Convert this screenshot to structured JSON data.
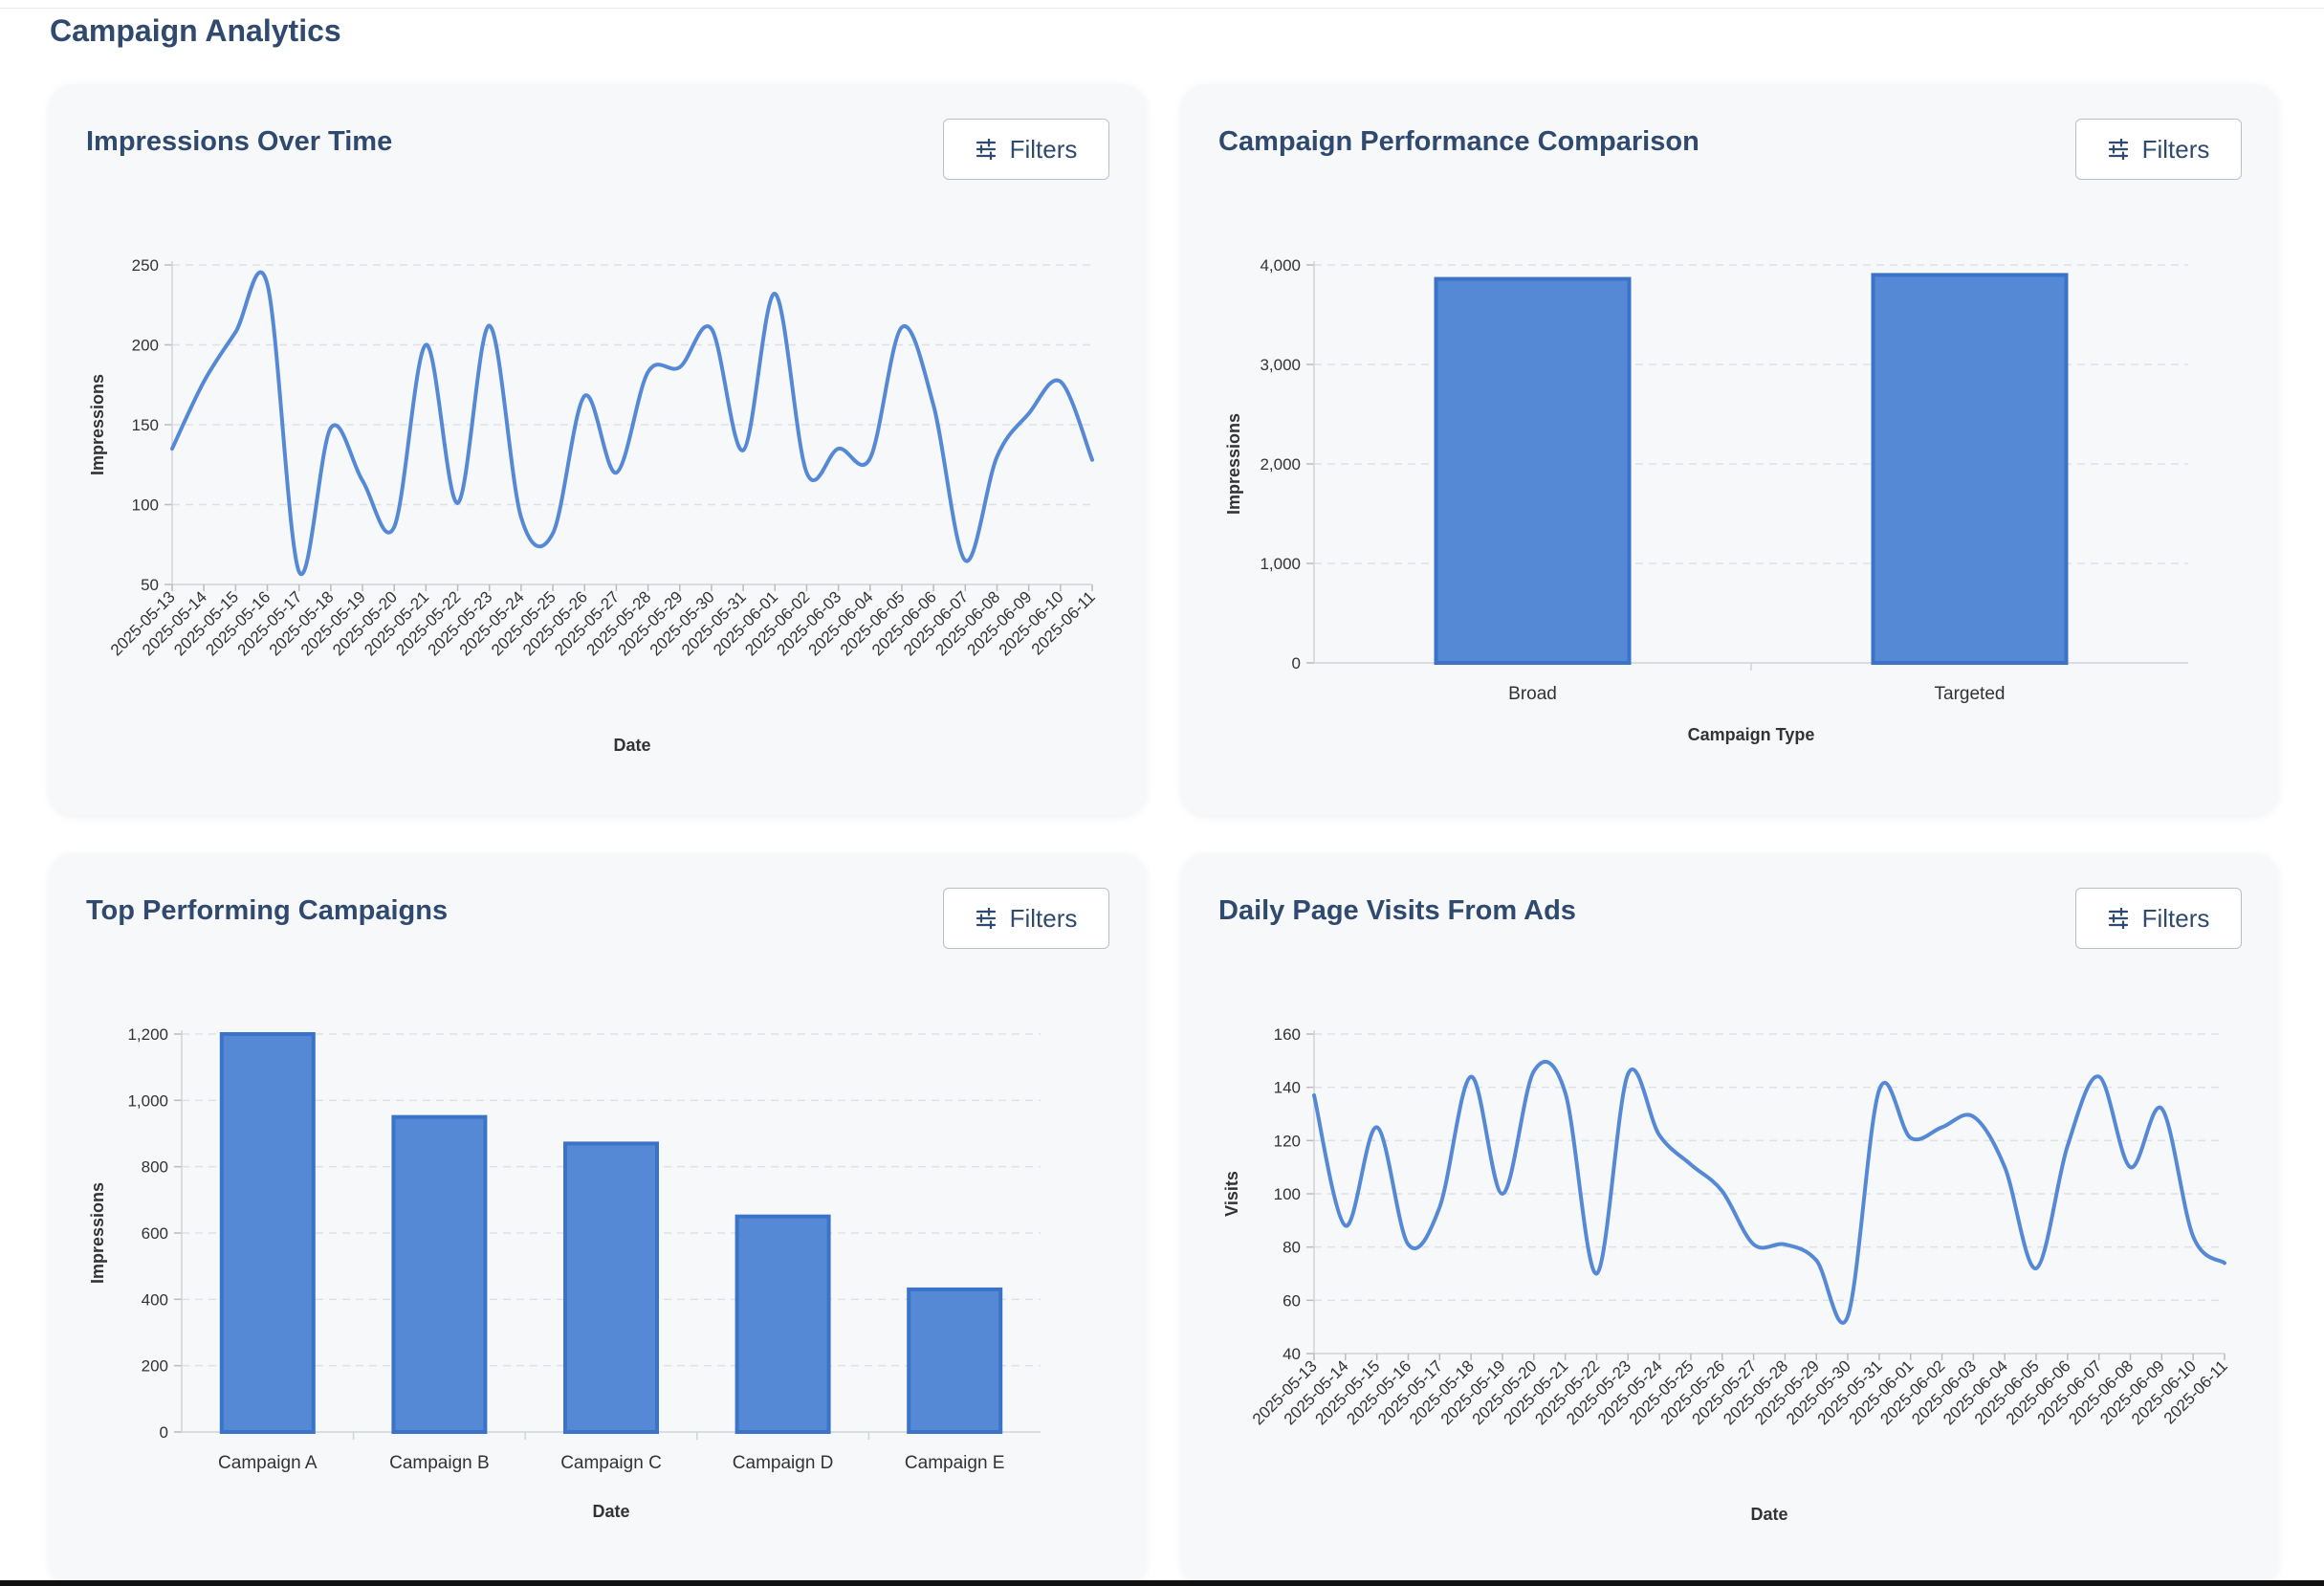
{
  "page": {
    "title": "Campaign Analytics"
  },
  "icons": {
    "filter": "sliders-icon"
  },
  "colors": {
    "bar_fill": "#5589d6",
    "bar_stroke": "#3b73c9",
    "line": "#5589d6",
    "title": "#2f4a6e",
    "grid": "#dde1e7",
    "card_bg": "#f7f8fa"
  },
  "cards": [
    {
      "title": "Impressions Over Time",
      "filter_label": "Filters"
    },
    {
      "title": "Campaign Performance Comparison",
      "filter_label": "Filters"
    },
    {
      "title": "Top Performing Campaigns",
      "filter_label": "Filters"
    },
    {
      "title": "Daily Page Visits From Ads",
      "filter_label": "Filters"
    }
  ],
  "chart_data": [
    {
      "type": "line",
      "title": "Impressions Over Time",
      "xlabel": "Date",
      "ylabel": "Impressions",
      "ylim": [
        50,
        250
      ],
      "yticks": [
        50,
        100,
        150,
        200,
        250
      ],
      "grid": true,
      "x": [
        "2025-05-13",
        "2025-05-14",
        "2025-05-15",
        "2025-05-16",
        "2025-05-17",
        "2025-05-18",
        "2025-05-19",
        "2025-05-20",
        "2025-05-21",
        "2025-05-22",
        "2025-05-23",
        "2025-05-24",
        "2025-05-25",
        "2025-05-26",
        "2025-05-27",
        "2025-05-28",
        "2025-05-29",
        "2025-05-30",
        "2025-05-31",
        "2025-06-01",
        "2025-06-02",
        "2025-06-03",
        "2025-06-04",
        "2025-06-05",
        "2025-06-06",
        "2025-06-07",
        "2025-06-08",
        "2025-06-09",
        "2025-06-10",
        "2025-06-11"
      ],
      "series": [
        {
          "values": [
            135,
            177,
            208,
            238,
            58,
            148,
            115,
            86,
            200,
            101,
            212,
            92,
            82,
            168,
            120,
            183,
            186,
            210,
            134,
            232,
            120,
            135,
            129,
            211,
            162,
            65,
            130,
            157,
            177,
            128
          ]
        }
      ]
    },
    {
      "type": "bar",
      "title": "Campaign Performance Comparison",
      "xlabel": "Campaign Type",
      "ylabel": "Impressions",
      "ylim": [
        0,
        4000
      ],
      "yticks": [
        0,
        1000,
        2000,
        3000,
        4000
      ],
      "ytick_labels": [
        "0",
        "1,000",
        "2,000",
        "3,000",
        "4,000"
      ],
      "grid": true,
      "categories": [
        "Broad",
        "Targeted"
      ],
      "values": [
        3860,
        3900
      ]
    },
    {
      "type": "bar",
      "title": "Top Performing Campaigns",
      "xlabel": "Date",
      "ylabel": "Impressions",
      "ylim": [
        0,
        1200
      ],
      "yticks": [
        0,
        200,
        400,
        600,
        800,
        1000,
        1200
      ],
      "ytick_labels": [
        "0",
        "200",
        "400",
        "600",
        "800",
        "1,000",
        "1,200"
      ],
      "grid": true,
      "categories": [
        "Campaign A",
        "Campaign B",
        "Campaign C",
        "Campaign D",
        "Campaign E"
      ],
      "values": [
        1200,
        950,
        870,
        650,
        430
      ]
    },
    {
      "type": "line",
      "title": "Daily Page Visits From Ads",
      "xlabel": "Date",
      "ylabel": "Visits",
      "ylim": [
        40,
        160
      ],
      "yticks": [
        40,
        60,
        80,
        100,
        120,
        140,
        160
      ],
      "grid": true,
      "x": [
        "2025-05-13",
        "2025-05-14",
        "2025-05-15",
        "2025-05-16",
        "2025-05-17",
        "2025-05-18",
        "2025-05-19",
        "2025-05-20",
        "2025-05-21",
        "2025-05-22",
        "2025-05-23",
        "2025-05-24",
        "2025-05-25",
        "2025-05-26",
        "2025-05-27",
        "2025-05-28",
        "2025-05-29",
        "2025-05-30",
        "2025-05-31",
        "2025-06-01",
        "2025-06-02",
        "2025-06-03",
        "2025-06-04",
        "2025-06-05",
        "2025-06-06",
        "2025-06-07",
        "2025-06-08",
        "2025-06-09",
        "2025-06-10",
        "2025-06-11"
      ],
      "series": [
        {
          "values": [
            137,
            88,
            125,
            81,
            95,
            144,
            100,
            146,
            138,
            70,
            145,
            122,
            111,
            101,
            81,
            81,
            75,
            54,
            139,
            121,
            125,
            129,
            110,
            72,
            118,
            144,
            110,
            132,
            84,
            74
          ]
        }
      ]
    }
  ]
}
